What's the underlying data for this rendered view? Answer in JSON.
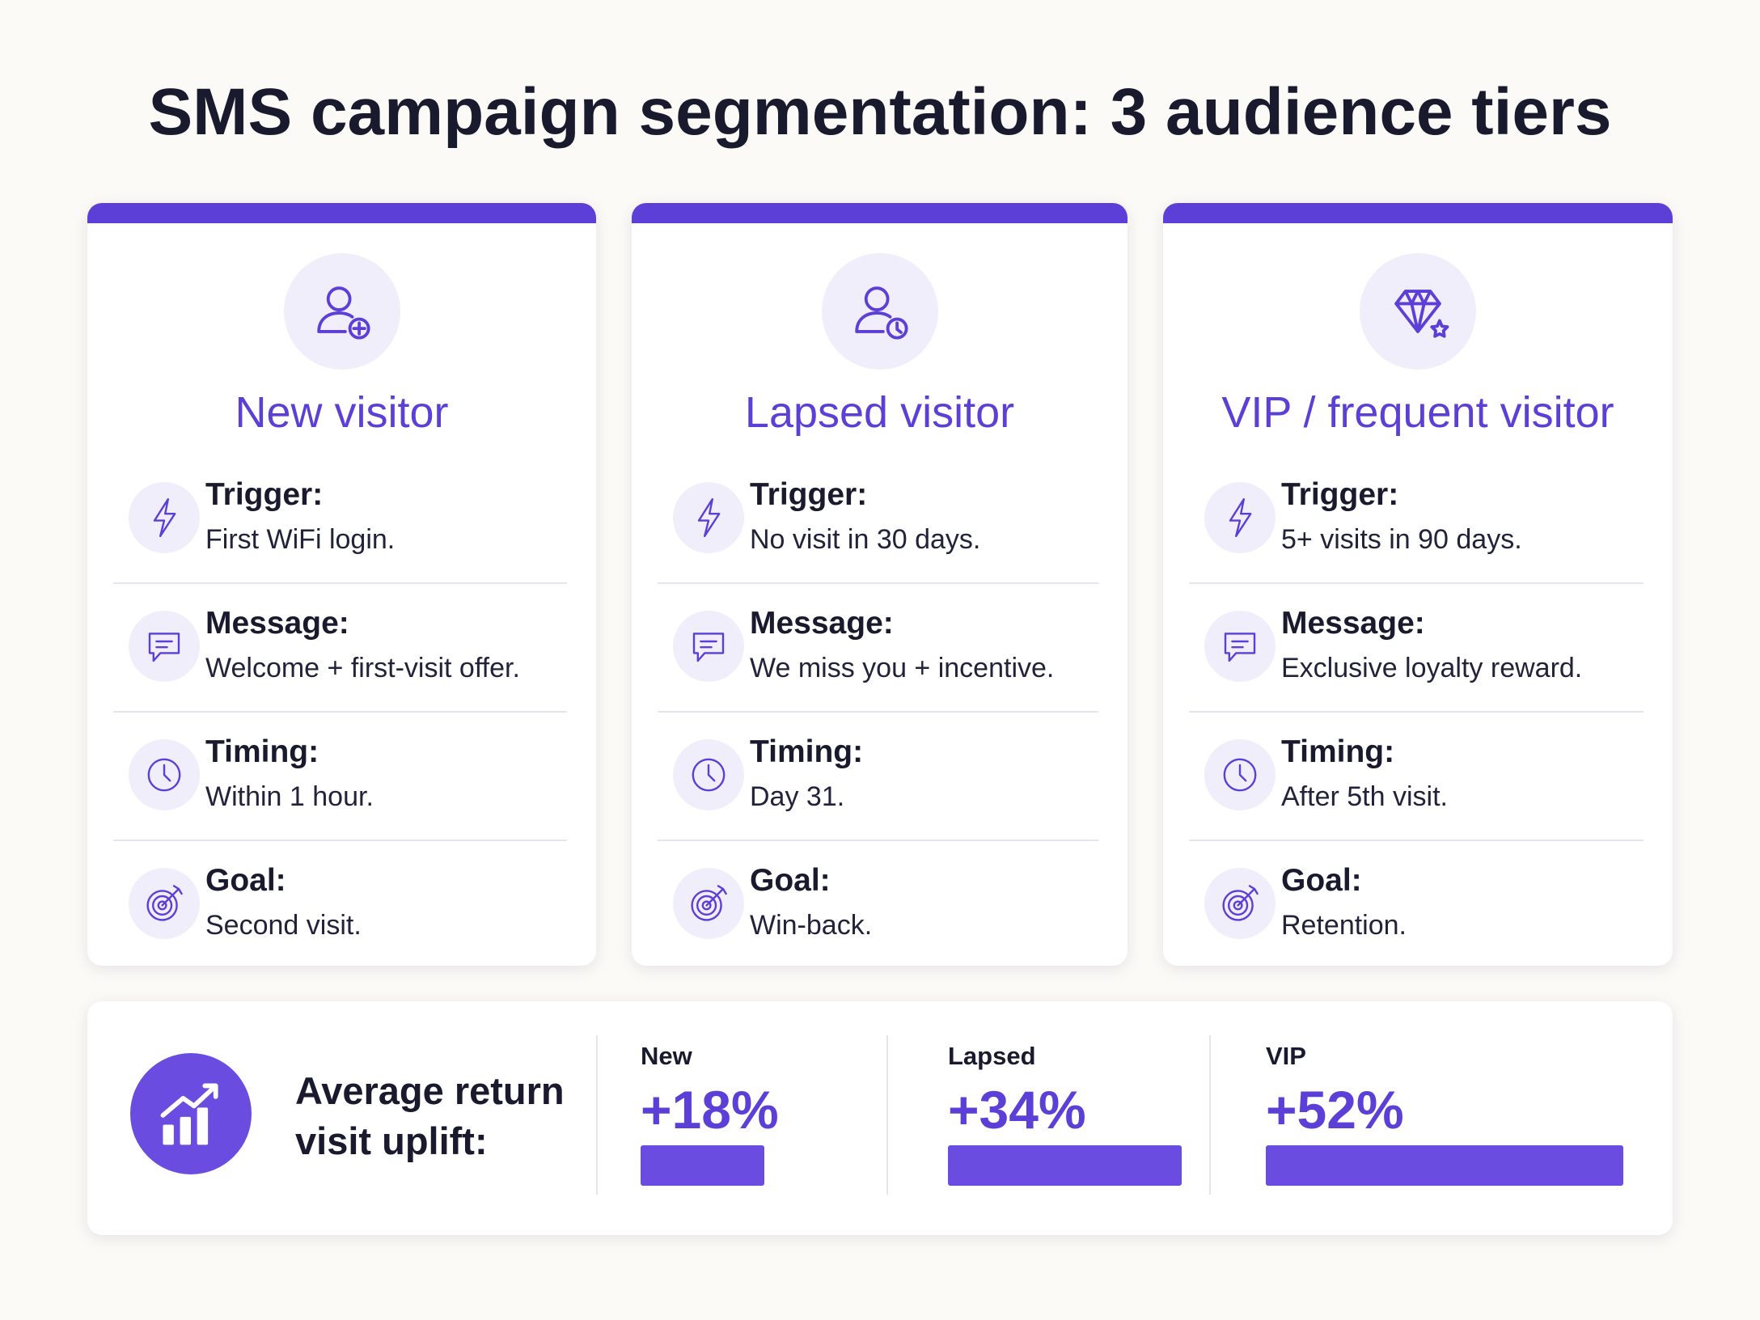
{
  "title": "SMS campaign segmentation: 3 audience tiers",
  "tiers": [
    {
      "name": "New visitor",
      "rows": [
        {
          "label": "Trigger:",
          "text": "First WiFi login."
        },
        {
          "label": "Message:",
          "text": "Welcome + first-visit offer."
        },
        {
          "label": "Timing:",
          "text": "Within 1 hour."
        },
        {
          "label": "Goal:",
          "text": "Second visit."
        }
      ]
    },
    {
      "name": "Lapsed visitor",
      "rows": [
        {
          "label": "Trigger:",
          "text": "No visit in 30 days."
        },
        {
          "label": "Message:",
          "text": "We miss you + incentive."
        },
        {
          "label": "Timing:",
          "text": "Day 31."
        },
        {
          "label": "Goal:",
          "text": "Win-back."
        }
      ]
    },
    {
      "name": "VIP / frequent visitor",
      "rows": [
        {
          "label": "Trigger:",
          "text": "5+ visits in 90 days."
        },
        {
          "label": "Message:",
          "text": "Exclusive loyalty reward."
        },
        {
          "label": "Timing:",
          "text": "After 5th visit."
        },
        {
          "label": "Goal:",
          "text": "Retention."
        }
      ]
    }
  ],
  "uplift": {
    "label": "Average return visit uplift:",
    "items": [
      {
        "name": "New",
        "value": 18,
        "value_label": "+18%"
      },
      {
        "name": "Lapsed",
        "value": 34,
        "value_label": "+34%"
      },
      {
        "name": "VIP",
        "value": 52,
        "value_label": "+52%"
      }
    ]
  }
}
